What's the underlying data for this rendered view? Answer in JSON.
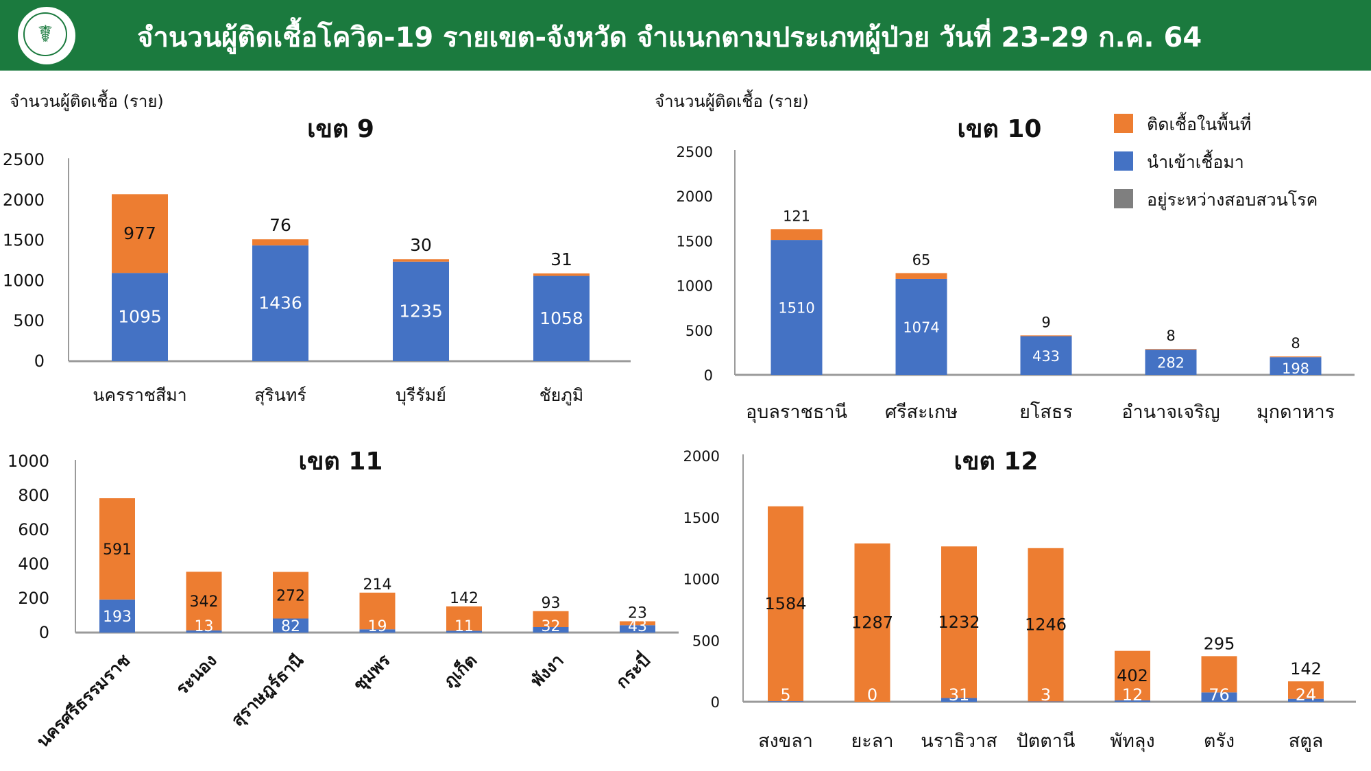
{
  "header": {
    "title": "จำนวนผู้ติดเชื้อโควิด-19 รายเขต-จังหวัด จำแนกตามประเภทผู้ป่วย วันที่ 23-29 ก.ค. 64",
    "logo_icon": "ministry-of-public-health-seal-icon"
  },
  "axis_unit_label_left": "จำนวนผู้ติดเชื้อ (ราย)",
  "axis_unit_label_right": "จำนวนผู้ติดเชื้อ (ราย)",
  "legend": {
    "items": [
      {
        "label": "ติดเชื้อในพื้นที่",
        "color": "#ed7d31"
      },
      {
        "label": "นำเข้าเชื้อมา",
        "color": "#4472c4"
      },
      {
        "label": "อยู่ระหว่างสอบสวนโรค",
        "color": "#7f7f7f"
      }
    ]
  },
  "chart_data": [
    {
      "type": "bar",
      "stacked": true,
      "title": "เขต 9",
      "categories": [
        "นครราชสีมา",
        "สุรินทร์",
        "บุรีรัมย์",
        "ชัยภูมิ"
      ],
      "series": [
        {
          "name": "นำเข้าเชื้อมา",
          "values": [
            1095,
            1436,
            1235,
            1058
          ],
          "color": "#4472c4"
        },
        {
          "name": "ติดเชื้อในพื้นที่",
          "values": [
            977,
            76,
            30,
            31
          ],
          "color": "#ed7d31"
        }
      ],
      "ylim": [
        0,
        2500
      ],
      "yticks": [
        0,
        500,
        1000,
        1500,
        2000,
        2500
      ]
    },
    {
      "type": "bar",
      "stacked": true,
      "title": "เขต 10",
      "categories": [
        "อุบลราชธานี",
        "ศรีสะเกษ",
        "ยโสธร",
        "อำนาจเจริญ",
        "มุกดาหาร"
      ],
      "series": [
        {
          "name": "นำเข้าเชื้อมา",
          "values": [
            1510,
            1074,
            433,
            282,
            198
          ],
          "color": "#4472c4"
        },
        {
          "name": "ติดเชื้อในพื้นที่",
          "values": [
            121,
            65,
            9,
            8,
            8
          ],
          "color": "#ed7d31"
        }
      ],
      "ylim": [
        0,
        2500
      ],
      "yticks": [
        0,
        500,
        1000,
        1500,
        2000,
        2500
      ]
    },
    {
      "type": "bar",
      "stacked": true,
      "title": "เขต 11",
      "categories": [
        "นครศรีธรรมราช",
        "ระนอง",
        "สุราษฎร์ธานี",
        "ชุมพร",
        "ภูเก็ต",
        "พังงา",
        "กระบี่"
      ],
      "series": [
        {
          "name": "นำเข้าเชื้อมา",
          "values": [
            193,
            13,
            82,
            19,
            11,
            32,
            43
          ],
          "color": "#4472c4"
        },
        {
          "name": "ติดเชื้อในพื้นที่",
          "values": [
            591,
            342,
            272,
            214,
            142,
            93,
            23
          ],
          "color": "#ed7d31"
        }
      ],
      "ylim": [
        0,
        1000
      ],
      "yticks": [
        0,
        200,
        400,
        600,
        800,
        1000
      ]
    },
    {
      "type": "bar",
      "stacked": true,
      "title": "เขต 12",
      "categories": [
        "สงขลา",
        "ยะลา",
        "นราธิวาส",
        "ปัตตานี",
        "พัทลุง",
        "ตรัง",
        "สตูล"
      ],
      "series": [
        {
          "name": "นำเข้าเชื้อมา",
          "values": [
            5,
            0,
            31,
            3,
            12,
            76,
            24
          ],
          "color": "#4472c4"
        },
        {
          "name": "ติดเชื้อในพื้นที่",
          "values": [
            1584,
            1287,
            1232,
            1246,
            402,
            295,
            142
          ],
          "color": "#ed7d31"
        }
      ],
      "ylim": [
        0,
        2000
      ],
      "yticks": [
        0,
        500,
        1000,
        1500,
        2000
      ]
    }
  ]
}
